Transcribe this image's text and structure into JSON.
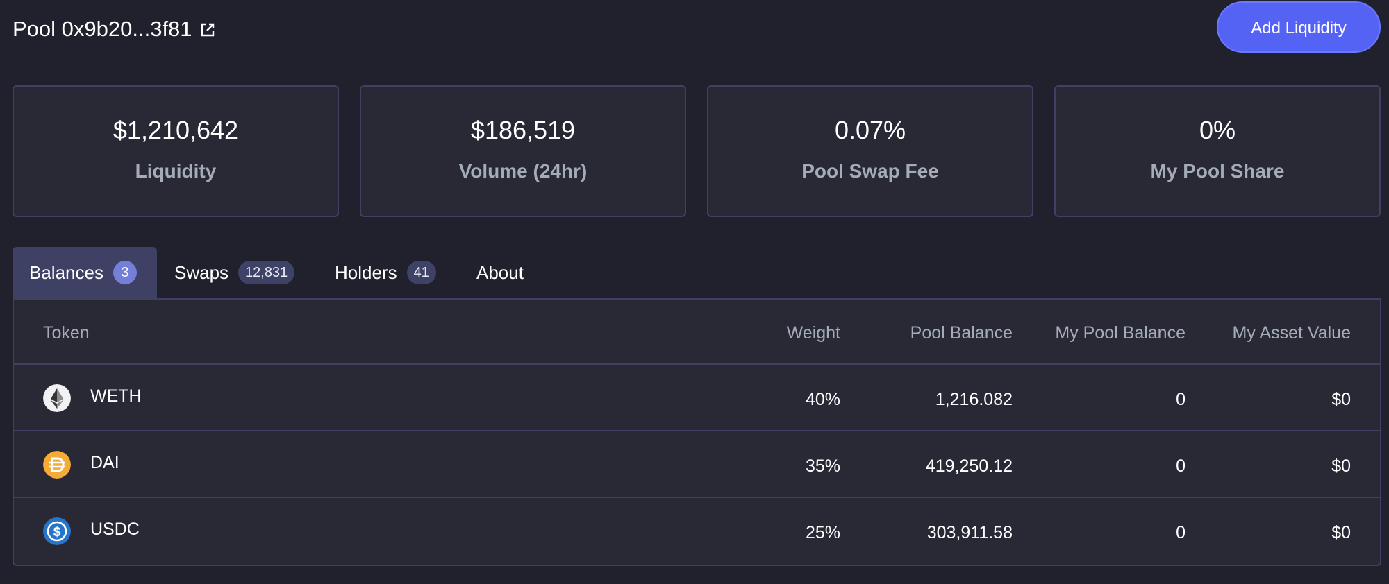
{
  "header": {
    "pool_title": "Pool 0x9b20...3f81",
    "add_liquidity_label": "Add Liquidity"
  },
  "stats": [
    {
      "value": "$1,210,642",
      "label": "Liquidity"
    },
    {
      "value": "$186,519",
      "label": "Volume (24hr)"
    },
    {
      "value": "0.07%",
      "label": "Pool Swap Fee"
    },
    {
      "value": "0%",
      "label": "My Pool Share"
    }
  ],
  "tabs": [
    {
      "label": "Balances",
      "badge": "3",
      "active": true
    },
    {
      "label": "Swaps",
      "badge": "12,831"
    },
    {
      "label": "Holders",
      "badge": "41"
    },
    {
      "label": "About",
      "badge": ""
    }
  ],
  "table": {
    "columns": [
      "Token",
      "Weight",
      "Pool Balance",
      "My Pool Balance",
      "My Asset Value"
    ],
    "rows": [
      {
        "token": "WETH",
        "icon": "eth-icon",
        "weight": "40%",
        "pool_balance": "1,216.082",
        "my_pool_balance": "0",
        "my_asset_value": "$0"
      },
      {
        "token": "DAI",
        "icon": "dai-icon",
        "weight": "35%",
        "pool_balance": "419,250.12",
        "my_pool_balance": "0",
        "my_asset_value": "$0"
      },
      {
        "token": "USDC",
        "icon": "usdc-icon",
        "weight": "25%",
        "pool_balance": "303,911.58",
        "my_pool_balance": "0",
        "my_asset_value": "$0"
      }
    ]
  },
  "colors": {
    "background": "#21212e",
    "card": "#292936",
    "border": "#3f4163",
    "accent": "#5563f5",
    "muted_text": "#a4acb8"
  }
}
